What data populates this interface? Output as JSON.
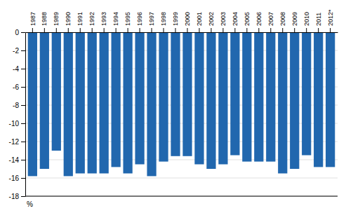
{
  "chart_data": {
    "type": "bar",
    "ylabel": "%",
    "categories": [
      "1987",
      "1988",
      "1989",
      "1990",
      "1991",
      "1992",
      "1993",
      "1994",
      "1995",
      "1996",
      "1997",
      "1998",
      "1999",
      "2000",
      "2001",
      "2002",
      "2003",
      "2004",
      "2005",
      "2006",
      "2007",
      "2008",
      "2009",
      "2010",
      "2011",
      "2012*"
    ],
    "values": [
      -15.8,
      -15.0,
      -13.0,
      -15.8,
      -15.5,
      -15.5,
      -15.5,
      -14.8,
      -15.5,
      -14.5,
      -15.8,
      -14.2,
      -13.6,
      -13.6,
      -14.5,
      -15.0,
      -14.5,
      -13.5,
      -14.2,
      -14.2,
      -14.2,
      -15.5,
      -15.0,
      -13.5,
      -14.8,
      -14.8
    ],
    "color": "#2167AE",
    "ylim": [
      -18,
      0
    ],
    "yticks": [
      0,
      -2,
      -4,
      -6,
      -8,
      -10,
      -12,
      -14,
      -16,
      -18
    ],
    "grid": true
  }
}
